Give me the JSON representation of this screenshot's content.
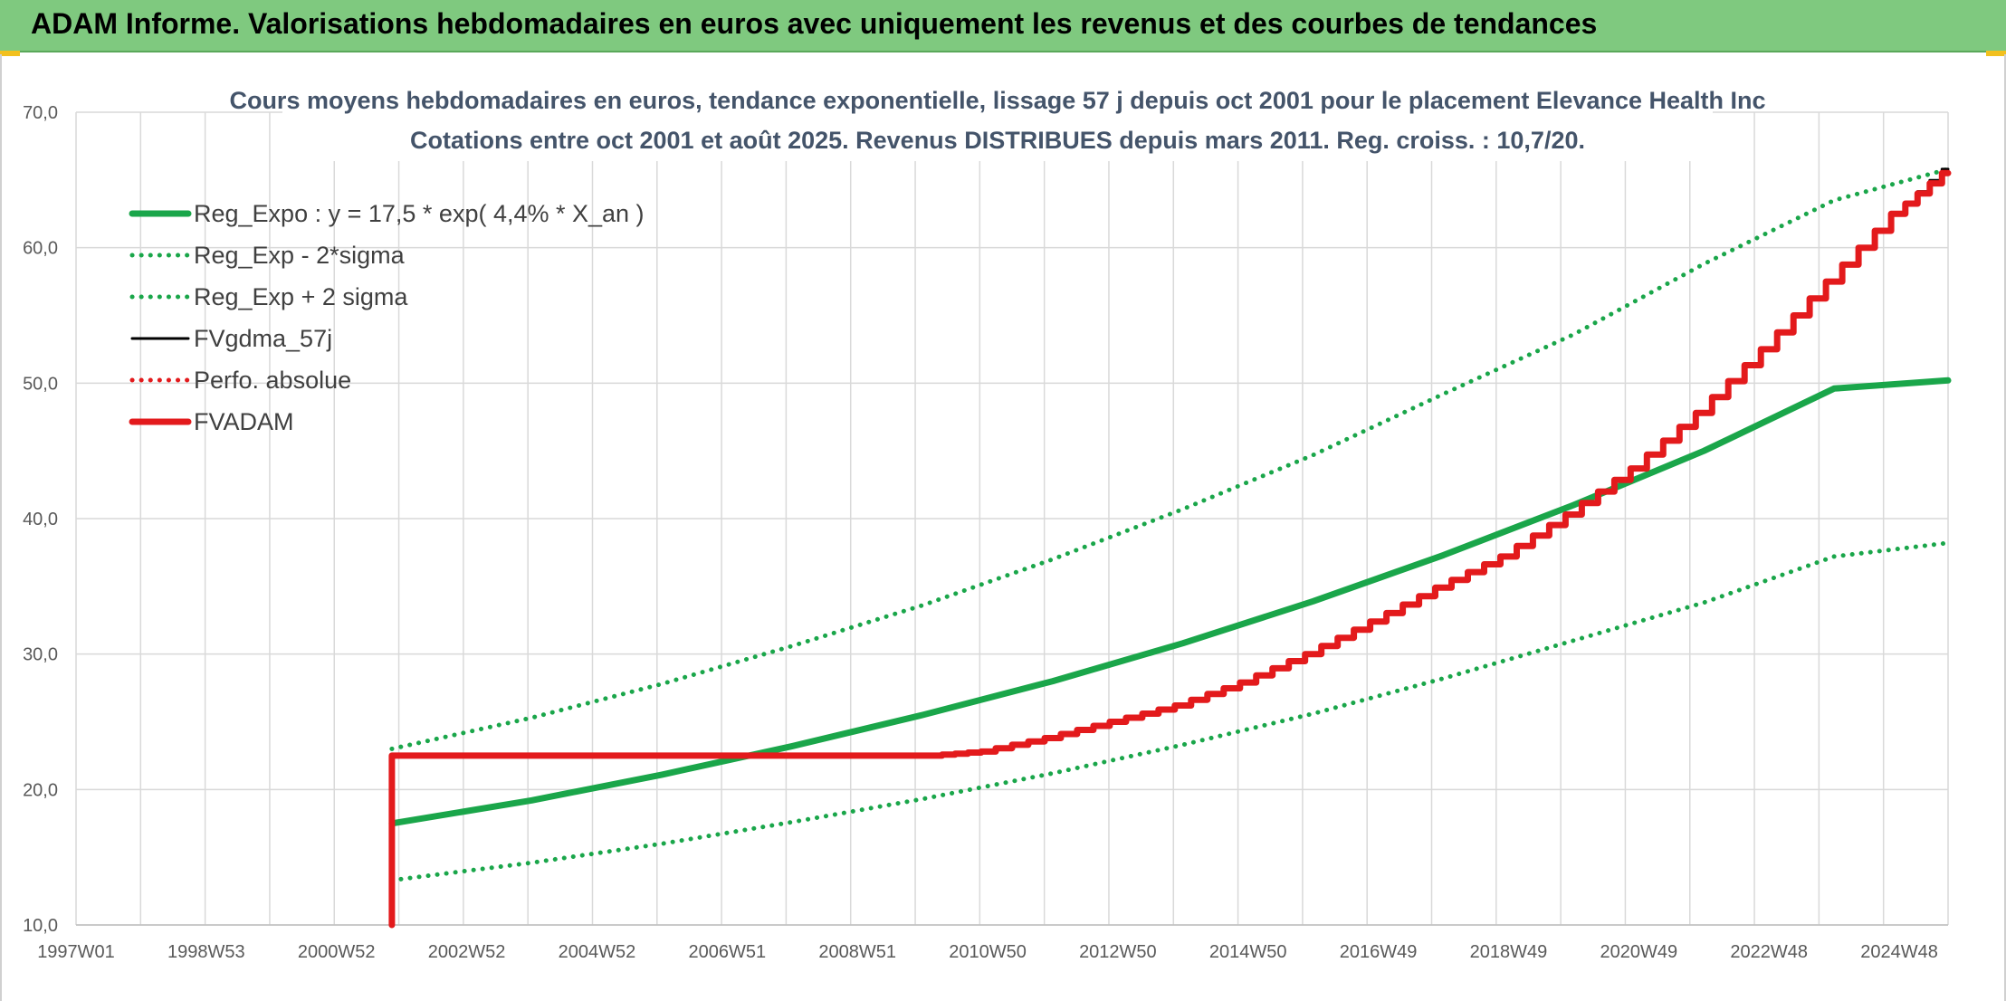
{
  "header": {
    "title": "ADAM Informe. Valorisations hebdomadaires en euros avec uniquement les revenus et des courbes de tendances"
  },
  "chart_data": {
    "type": "line",
    "title": "Cours moyens hebdomadaires en euros, tendance exponentielle, lissage 57 j depuis oct 2001 pour le placement Elevance Health Inc",
    "subtitle": "Cotations entre oct 2001 et août 2025. Revenus DISTRIBUES depuis mars 2011. Reg. croiss. : 10,7/20.",
    "xlabel": "",
    "ylabel": "",
    "x_ticks": [
      "1997W01",
      "1998W53",
      "2000W52",
      "2002W52",
      "2004W52",
      "2006W51",
      "2008W51",
      "2010W50",
      "2012W50",
      "2014W50",
      "2016W49",
      "2018W49",
      "2020W49",
      "2022W48",
      "2024W48"
    ],
    "xlim": [
      1997.0,
      2025.75
    ],
    "ylim": [
      10,
      70
    ],
    "y_ticks": [
      "10,0",
      "20,0",
      "30,0",
      "40,0",
      "50,0",
      "60,0",
      "70,0"
    ],
    "grid": true,
    "legend_position": "top-left",
    "series": [
      {
        "name": "Reg_Expo : y = 17,5 * exp( 4,4% *  X_an )",
        "style": "solid-thick",
        "color": "#1aa64a",
        "x": [
          2001.85,
          2004,
          2006,
          2008,
          2010,
          2012,
          2014,
          2016,
          2018,
          2020,
          2022,
          2024,
          2025.75
        ],
        "y": [
          17.5,
          19.2,
          21.1,
          23.2,
          25.5,
          28.0,
          30.8,
          33.9,
          37.3,
          41.0,
          45.0,
          49.6,
          50.2
        ]
      },
      {
        "name": "Reg_Exp - 2*sigma",
        "style": "dotted",
        "color": "#1aa64a",
        "x": [
          2001.85,
          2004,
          2006,
          2008,
          2010,
          2012,
          2014,
          2016,
          2018,
          2020,
          2022,
          2024,
          2025.75
        ],
        "y": [
          13.3,
          14.6,
          16.0,
          17.6,
          19.3,
          21.2,
          23.3,
          25.6,
          28.2,
          31.0,
          33.8,
          37.2,
          38.2
        ]
      },
      {
        "name": "Reg_Exp + 2 sigma",
        "style": "dotted",
        "color": "#1aa64a",
        "x": [
          2001.85,
          2004,
          2006,
          2008,
          2010,
          2012,
          2014,
          2016,
          2018,
          2020,
          2022,
          2024,
          2025.75
        ],
        "y": [
          23.0,
          25.3,
          27.8,
          30.6,
          33.6,
          37.0,
          40.7,
          44.7,
          49.2,
          53.6,
          58.8,
          63.5,
          65.8
        ]
      },
      {
        "name": "FVgdma_57j",
        "style": "solid",
        "color": "#000000",
        "x": [
          2010.2,
          2011,
          2012,
          2013,
          2014,
          2015,
          2016,
          2017,
          2018,
          2019,
          2020,
          2021,
          2022,
          2023,
          2024,
          2025,
          2025.75
        ],
        "y": [
          22.5,
          22.8,
          23.8,
          25.0,
          26.2,
          27.9,
          30.0,
          32.4,
          34.9,
          37.2,
          40.3,
          43.7,
          47.8,
          52.5,
          57.5,
          62.5,
          65.8
        ]
      },
      {
        "name": "Perfo. absolue",
        "style": "dotted",
        "color": "#e31a1c",
        "x": [],
        "y": []
      },
      {
        "name": "FVADAM",
        "style": "solid-thick",
        "color": "#e31a1c",
        "x": [
          2001.85,
          2001.85,
          2010.2,
          2011,
          2012,
          2013,
          2014,
          2015,
          2016,
          2017,
          2018,
          2019,
          2020,
          2021,
          2022,
          2023,
          2024,
          2025,
          2025.75
        ],
        "y": [
          10.0,
          22.5,
          22.5,
          22.8,
          23.8,
          25.0,
          26.2,
          27.9,
          30.0,
          32.4,
          34.9,
          37.2,
          40.3,
          43.7,
          47.8,
          52.5,
          57.5,
          62.5,
          65.5
        ]
      }
    ]
  }
}
